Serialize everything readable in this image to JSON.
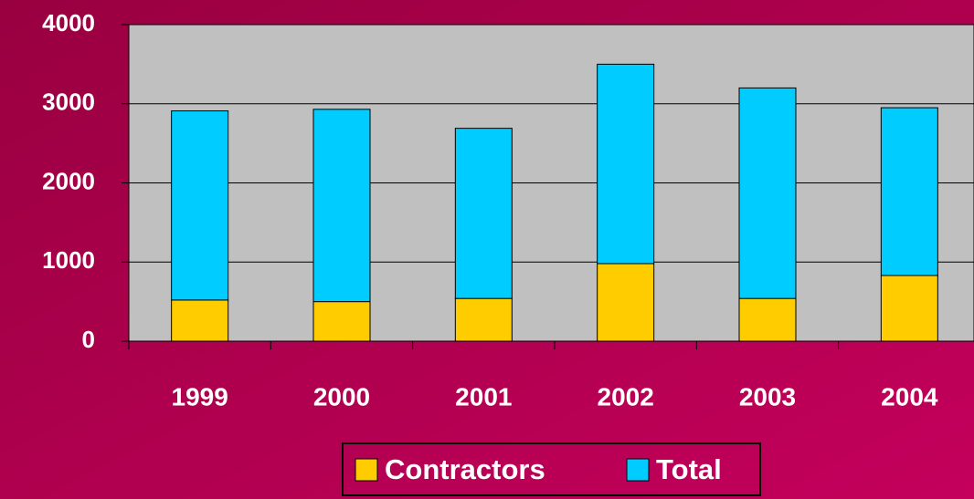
{
  "chart_data": {
    "type": "stacked_bar",
    "categories": [
      "1999",
      "2000",
      "2001",
      "2002",
      "2003",
      "2004"
    ],
    "series": [
      {
        "name": "Contractors",
        "color": "#ffcc00",
        "values": [
          520,
          500,
          540,
          980,
          540,
          830
        ]
      },
      {
        "name": "Total",
        "color": "#00ccff",
        "values": [
          2390,
          2430,
          2150,
          2520,
          2660,
          2120
        ]
      }
    ],
    "ylim": [
      0,
      4000
    ],
    "yticks": [
      0,
      1000,
      2000,
      3000,
      4000
    ],
    "grid": true,
    "legend": "bottom"
  }
}
